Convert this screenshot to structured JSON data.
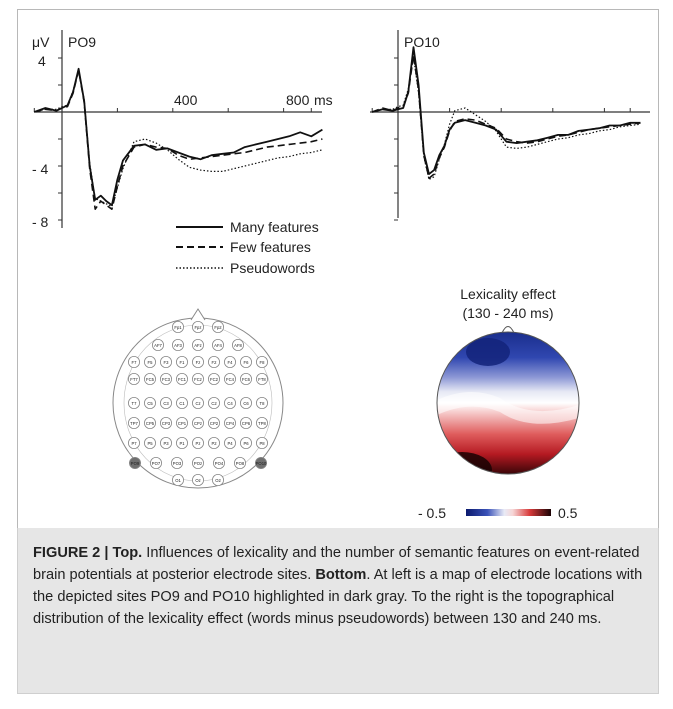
{
  "erp": {
    "unit_label": "μV",
    "x_tick_labels": [
      "400",
      "800"
    ],
    "x_unit": "ms",
    "y_tick_labels": [
      "4",
      "- 4",
      "- 8"
    ],
    "panels": [
      {
        "electrode": "PO9"
      },
      {
        "electrode": "PO10"
      }
    ],
    "legend": [
      "Many features",
      "Few features",
      "Pseudowords"
    ]
  },
  "chart_data": [
    {
      "type": "line",
      "panel": "PO9",
      "x_unit": "ms",
      "y_unit": "μV",
      "xlim": [
        -110,
        950
      ],
      "ylim": [
        -8.8,
        5.5
      ],
      "x": [
        -100,
        -60,
        -20,
        0,
        20,
        40,
        60,
        80,
        100,
        120,
        140,
        160,
        180,
        200,
        220,
        260,
        300,
        340,
        380,
        420,
        460,
        500,
        540,
        580,
        620,
        660,
        700,
        740,
        780,
        820,
        860,
        900,
        940
      ],
      "series": [
        {
          "name": "Many features",
          "values": [
            0,
            0.3,
            0.1,
            0.3,
            0.5,
            1.5,
            3.2,
            0.8,
            -4.0,
            -6.5,
            -6.2,
            -6.6,
            -6.9,
            -5.0,
            -3.6,
            -2.5,
            -2.4,
            -2.8,
            -2.7,
            -3.0,
            -3.3,
            -3.5,
            -3.2,
            -3.1,
            -3.0,
            -2.6,
            -2.4,
            -2.2,
            -2.0,
            -1.8,
            -1.5,
            -1.8,
            -1.3
          ]
        },
        {
          "name": "Few features",
          "values": [
            0,
            0.2,
            0.1,
            0.3,
            0.4,
            1.4,
            3.1,
            0.7,
            -4.2,
            -7.2,
            -6.6,
            -6.9,
            -7.2,
            -5.5,
            -4.0,
            -2.6,
            -2.4,
            -2.6,
            -2.7,
            -3.2,
            -3.5,
            -3.4,
            -3.3,
            -3.2,
            -3.1,
            -3.0,
            -2.8,
            -2.6,
            -2.5,
            -2.4,
            -2.3,
            -2.2,
            -2.0
          ]
        },
        {
          "name": "Pseudowords",
          "values": [
            0,
            0.2,
            0.2,
            0.4,
            0.5,
            1.6,
            3.0,
            0.9,
            -3.8,
            -6.4,
            -6.6,
            -6.8,
            -7.0,
            -5.6,
            -4.2,
            -2.2,
            -2.0,
            -2.3,
            -2.8,
            -3.5,
            -4.1,
            -4.3,
            -4.4,
            -4.4,
            -4.2,
            -4.0,
            -3.8,
            -3.6,
            -3.4,
            -3.3,
            -3.1,
            -3.0,
            -2.8
          ]
        }
      ]
    },
    {
      "type": "line",
      "panel": "PO10",
      "x_unit": "ms",
      "y_unit": "μV",
      "xlim": [
        -110,
        950
      ],
      "ylim": [
        -8.8,
        5.5
      ],
      "x": [
        -100,
        -60,
        -20,
        0,
        20,
        40,
        60,
        80,
        100,
        120,
        140,
        160,
        180,
        200,
        220,
        260,
        300,
        340,
        380,
        420,
        460,
        500,
        540,
        580,
        620,
        660,
        700,
        740,
        780,
        820,
        860,
        900,
        940
      ],
      "series": [
        {
          "name": "Many features",
          "values": [
            0,
            0.2,
            0.1,
            0.2,
            0.3,
            1.5,
            4.8,
            2.0,
            -3.0,
            -4.6,
            -4.3,
            -3.2,
            -2.5,
            -1.3,
            -0.8,
            -0.6,
            -0.8,
            -1.0,
            -1.3,
            -2.2,
            -2.3,
            -2.2,
            -2.1,
            -1.9,
            -1.7,
            -1.7,
            -1.4,
            -1.3,
            -1.2,
            -1.0,
            -1.0,
            -0.8,
            -0.8
          ]
        },
        {
          "name": "Few features",
          "values": [
            0,
            0.3,
            0.1,
            0.3,
            0.4,
            1.4,
            4.2,
            1.6,
            -3.2,
            -4.9,
            -4.6,
            -3.4,
            -2.6,
            -1.4,
            -0.7,
            -0.5,
            -0.6,
            -0.9,
            -1.2,
            -2.0,
            -2.2,
            -2.3,
            -2.2,
            -2.0,
            -1.8,
            -1.7,
            -1.5,
            -1.3,
            -1.2,
            -1.1,
            -1.0,
            -0.9,
            -0.8
          ]
        },
        {
          "name": "Pseudowords",
          "values": [
            0,
            0.2,
            0.2,
            0.4,
            0.5,
            1.7,
            4.1,
            1.4,
            -3.3,
            -5.0,
            -4.8,
            -3.5,
            -2.4,
            -0.9,
            0.1,
            0.3,
            -0.2,
            -0.7,
            -1.4,
            -2.6,
            -2.7,
            -2.6,
            -2.4,
            -2.2,
            -2.0,
            -1.9,
            -1.7,
            -1.6,
            -1.4,
            -1.3,
            -1.1,
            -1.0,
            -0.9
          ]
        }
      ]
    }
  ],
  "topo": {
    "title_line1": "Lexicality effect",
    "title_line2": "(130 - 240 ms)",
    "scale_min": "- 0.5",
    "scale_max": "0.5",
    "colors": {
      "neg": "#1a2e8c",
      "pos": "#a4121a",
      "mid": "#ffffff"
    }
  },
  "electrode_map": {
    "rows": [
      [
        "Fp1",
        "Fpz",
        "Fp2"
      ],
      [
        "AF7",
        "AF3",
        "AFz",
        "AF4",
        "AF8"
      ],
      [
        "F7",
        "F5",
        "F3",
        "F1",
        "Fz",
        "F2",
        "F4",
        "F6",
        "F8"
      ],
      [
        "FT7",
        "FC5",
        "FC3",
        "FC1",
        "FCz",
        "FC2",
        "FC4",
        "FC6",
        "FT8"
      ],
      [
        "T7",
        "C5",
        "C3",
        "C1",
        "Cz",
        "C2",
        "C4",
        "C6",
        "T8"
      ],
      [
        "TP7",
        "CP5",
        "CP3",
        "CP1",
        "CPz",
        "CP2",
        "CP4",
        "CP6",
        "TP8"
      ],
      [
        "P7",
        "P5",
        "P3",
        "P1",
        "Pz",
        "P2",
        "P4",
        "P6",
        "P8"
      ],
      [
        "PO9",
        "PO7",
        "PO3",
        "POz",
        "PO4",
        "PO8",
        "PO10"
      ],
      [
        "O1",
        "Oz",
        "O2"
      ]
    ],
    "highlighted": [
      "PO9",
      "PO10"
    ],
    "highlight_color": "#6f6f6f"
  },
  "caption": {
    "label": "FIGURE 2 | Top.",
    "text_top": " Influences of lexicality and the number of semantic features on event-related brain potentials at posterior electrode sites.",
    "label_bottom": "Bottom",
    "text_bottom": ". At left is a map of electrode locations with the depicted sites PO9 and PO10 highlighted in dark gray. To the right is the topographical distribution of the lexicality effect (words minus pseudowords) between 130 and 240 ms."
  }
}
